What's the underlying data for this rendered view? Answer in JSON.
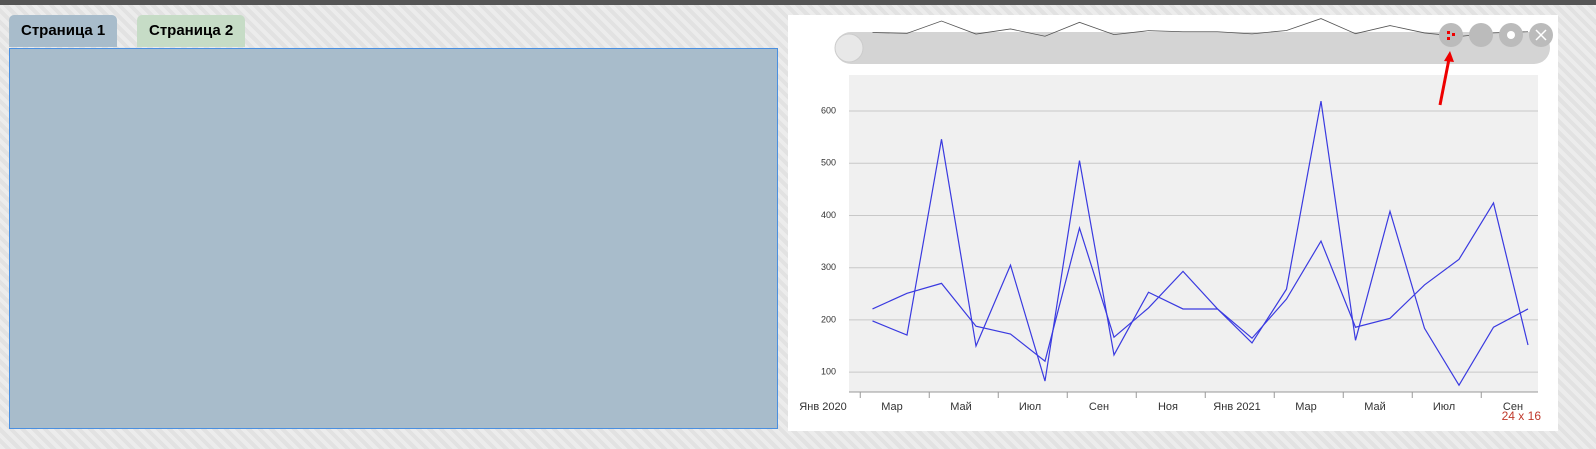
{
  "tabs": [
    "Страница 1",
    "Страница 2"
  ],
  "widget_size": "24 x 16",
  "chart_data": {
    "type": "line",
    "categories": [
      "Янв 2020",
      null,
      "Мар",
      null,
      "Май",
      null,
      "Июл",
      null,
      "Сен",
      null,
      "Ноя",
      null,
      "Янв 2021",
      null,
      "Мар",
      null,
      "Май",
      null,
      "Июл",
      null,
      "Сен"
    ],
    "series": [
      {
        "color": "#3a3ae0",
        "values": [
          null,
          198,
          171,
          546,
          150,
          305,
          83,
          505,
          133,
          253,
          221,
          221,
          156,
          259,
          619,
          161,
          408,
          184,
          75,
          186,
          221
        ]
      },
      {
        "color": "#3a3ae0",
        "values": [
          null,
          221,
          251,
          270,
          188,
          173,
          121,
          376,
          167,
          223,
          293,
          221,
          165,
          240,
          351,
          186,
          203,
          267,
          316,
          424,
          152
        ]
      }
    ],
    "ylim": [
      62,
      669
    ],
    "yticks": [
      100,
      200,
      300,
      400,
      500,
      600
    ],
    "grid": true
  }
}
